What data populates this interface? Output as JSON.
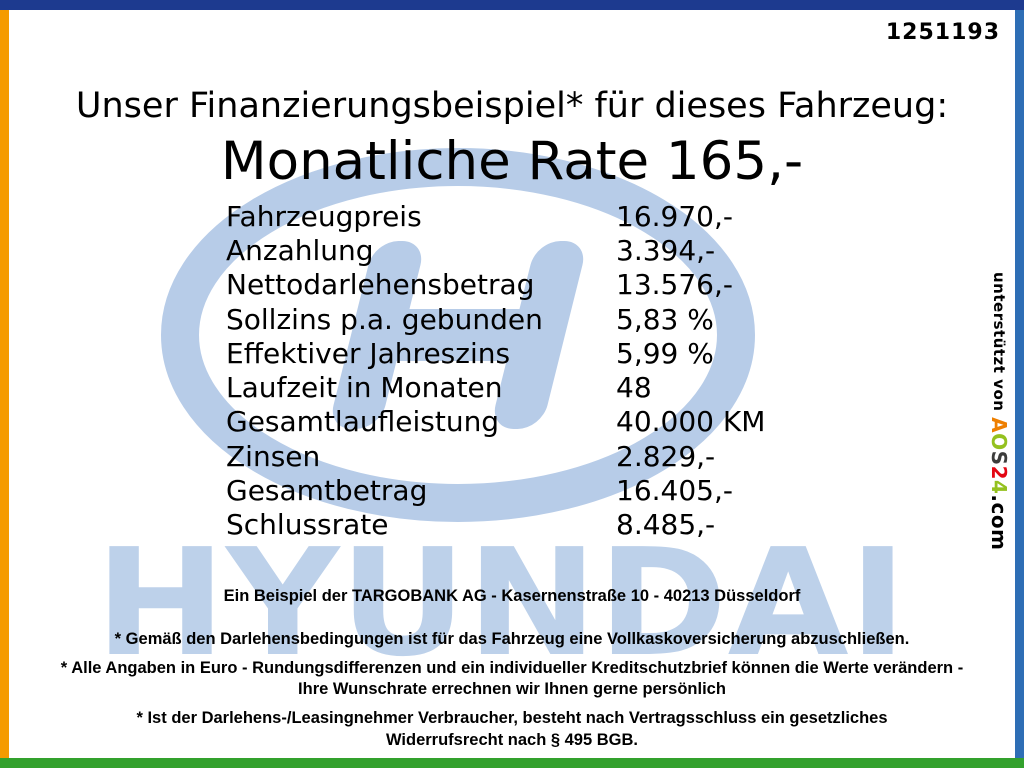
{
  "page": {
    "id_number": "1251193",
    "title": "Unser Finanzierungsbeispiel* für dieses Fahrzeug:",
    "subtitle": "Monatliche Rate 165,-"
  },
  "finance": {
    "rows": [
      {
        "label": "Fahrzeugpreis",
        "value": "16.970,-"
      },
      {
        "label": "Anzahlung",
        "value": "3.394,-"
      },
      {
        "label": "Nettodarlehensbetrag",
        "value": "13.576,-"
      },
      {
        "label": "Sollzins p.a. gebunden",
        "value": "5,83 %"
      },
      {
        "label": "Effektiver Jahreszins",
        "value": "5,99 %"
      },
      {
        "label": "Laufzeit in Monaten",
        "value": "48"
      },
      {
        "label": "Gesamtlaufleistung",
        "value": "40.000 KM"
      },
      {
        "label": "Zinsen",
        "value": "2.829,-"
      },
      {
        "label": "Gesamtbetrag",
        "value": "16.405,-"
      },
      {
        "label": "Schlussrate",
        "value": "8.485,-"
      }
    ]
  },
  "footer": {
    "bank_line": "Ein Beispiel der TARGOBANK AG - Kasernenstraße 10 - 40213 Düsseldorf",
    "notes": [
      "* Gemäß den Darlehensbedingungen ist für das Fahrzeug eine Vollkaskoversicherung abzuschließen.",
      "* Alle Angaben in Euro - Rundungsdifferenzen und ein individueller Kreditschutzbrief können die Werte verändern - Ihre Wunschrate errechnen wir Ihnen gerne persönlich",
      "* Ist der Darlehens-/Leasingnehmer Verbraucher, besteht nach Vertragsschluss ein gesetzliches Widerrufsrecht nach § 495 BGB."
    ]
  },
  "support": {
    "prefix": "unterstützt von ",
    "brand_letters": [
      {
        "ch": "A",
        "color": "#ee7f00"
      },
      {
        "ch": "O",
        "color": "#94c11f"
      },
      {
        "ch": "S",
        "color": "#3c3c3b"
      },
      {
        "ch": "2",
        "color": "#e30613"
      },
      {
        "ch": "4",
        "color": "#94c11f"
      }
    ],
    "suffix": ".com"
  },
  "watermark": {
    "brand": "HYUNDAI"
  },
  "colors": {
    "border_top": "#1d3a8f",
    "border_left": "#f59b00",
    "border_right": "#2e6eb5",
    "border_bottom": "#33a12d",
    "watermark": "#b7cce8",
    "watermark_light": "#bdd1ea"
  }
}
